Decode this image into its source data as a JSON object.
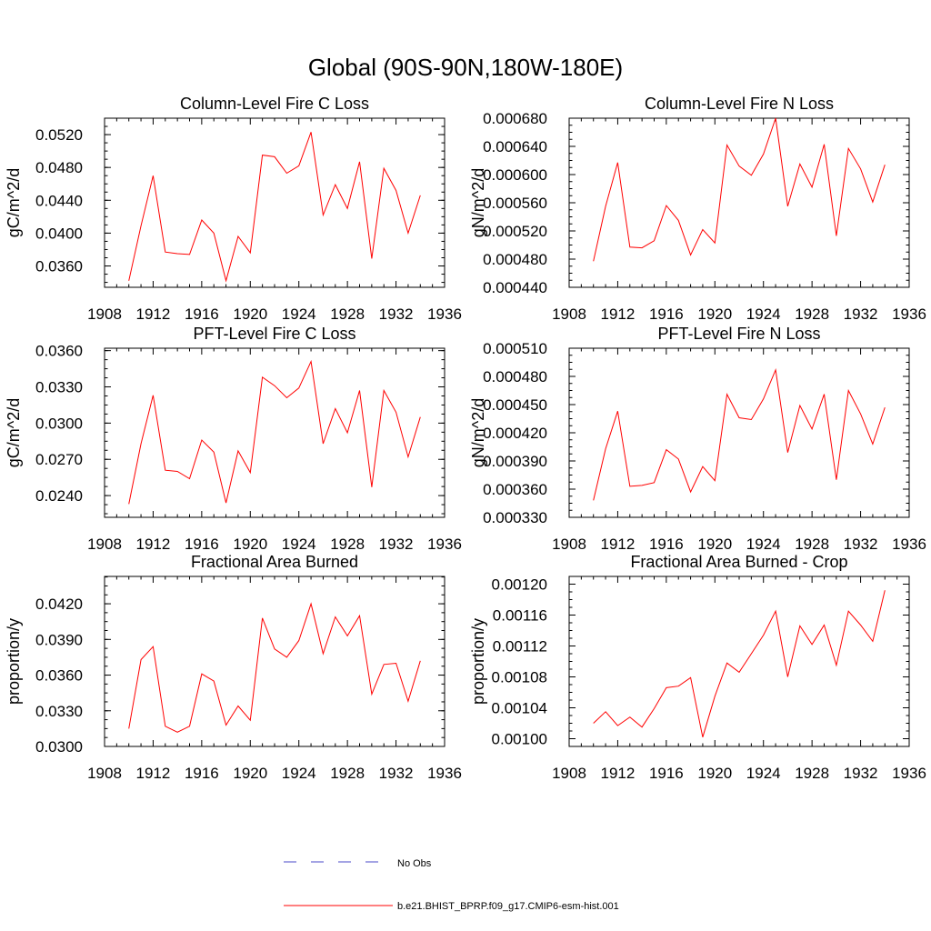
{
  "figure_title": "Global (90S-90N,180W-180E)",
  "legend": [
    {
      "label": "No Obs",
      "color": "#4a4ac8",
      "style": "dashed"
    },
    {
      "label": "b.e21.BHIST_BPRP.f09_g17.CMIP6-esm-hist.001",
      "color": "#ff0000",
      "style": "solid"
    }
  ],
  "chart_data": [
    {
      "type": "line",
      "title": "Column-Level Fire C Loss",
      "xlabel": "",
      "ylabel": "gC/m^2/d",
      "xlim": [
        1908,
        1936
      ],
      "ylim": [
        0.0334,
        0.054
      ],
      "xticks": [
        1908,
        1912,
        1916,
        1920,
        1924,
        1928,
        1932,
        1936
      ],
      "xtick_labels": [
        "1908",
        "1912",
        "1916",
        "1920",
        "1924",
        "1928",
        "1932",
        "1936"
      ],
      "yticks": [
        0.036,
        0.04,
        0.044,
        0.048,
        0.052
      ],
      "ytick_labels": [
        "0.0360",
        "0.0400",
        "0.0440",
        "0.0480",
        "0.0520"
      ],
      "grid": false,
      "series": [
        {
          "color": "#ff0000",
          "x": [
            1910,
            1911,
            1912,
            1913,
            1914,
            1915,
            1916,
            1917,
            1918,
            1919,
            1920,
            1921,
            1922,
            1923,
            1924,
            1925,
            1926,
            1927,
            1928,
            1929,
            1930,
            1931,
            1932,
            1933,
            1934
          ],
          "values": [
            0.0342,
            0.0409,
            0.047,
            0.0377,
            0.0375,
            0.0374,
            0.0416,
            0.04,
            0.0342,
            0.0396,
            0.0376,
            0.0495,
            0.0493,
            0.0473,
            0.0482,
            0.0523,
            0.0422,
            0.0459,
            0.043,
            0.0487,
            0.0369,
            0.0479,
            0.0452,
            0.04,
            0.0446
          ]
        }
      ]
    },
    {
      "type": "line",
      "title": "Column-Level Fire N Loss",
      "xlabel": "",
      "ylabel": "gN/m^2/d",
      "xlim": [
        1908,
        1936
      ],
      "ylim": [
        0.00044,
        0.00068
      ],
      "xticks": [
        1908,
        1912,
        1916,
        1920,
        1924,
        1928,
        1932,
        1936
      ],
      "xtick_labels": [
        "1908",
        "1912",
        "1916",
        "1920",
        "1924",
        "1928",
        "1932",
        "1936"
      ],
      "yticks": [
        0.00044,
        0.00048,
        0.00052,
        0.00056,
        0.0006,
        0.00064,
        0.00068
      ],
      "ytick_labels": [
        "0.000440",
        "0.000480",
        "0.000520",
        "0.000560",
        "0.000600",
        "0.000640",
        "0.000680"
      ],
      "grid": false,
      "series": [
        {
          "color": "#ff0000",
          "x": [
            1910,
            1911,
            1912,
            1913,
            1914,
            1915,
            1916,
            1917,
            1918,
            1919,
            1920,
            1921,
            1922,
            1923,
            1924,
            1925,
            1926,
            1927,
            1928,
            1929,
            1930,
            1931,
            1932,
            1933,
            1934
          ],
          "values": [
            0.000477,
            0.000555,
            0.000617,
            0.000497,
            0.000496,
            0.000506,
            0.000556,
            0.000535,
            0.000486,
            0.000522,
            0.000503,
            0.000642,
            0.000612,
            0.000599,
            0.000629,
            0.00068,
            0.000555,
            0.000615,
            0.000582,
            0.000643,
            0.000513,
            0.000637,
            0.000608,
            0.000561,
            0.000614
          ]
        }
      ]
    },
    {
      "type": "line",
      "title": "PFT-Level Fire C Loss",
      "xlabel": "",
      "ylabel": "gC/m^2/d",
      "xlim": [
        1908,
        1936
      ],
      "ylim": [
        0.0222,
        0.0362
      ],
      "xticks": [
        1908,
        1912,
        1916,
        1920,
        1924,
        1928,
        1932,
        1936
      ],
      "xtick_labels": [
        "1908",
        "1912",
        "1916",
        "1920",
        "1924",
        "1928",
        "1932",
        "1936"
      ],
      "yticks": [
        0.024,
        0.027,
        0.03,
        0.033,
        0.036
      ],
      "ytick_labels": [
        "0.0240",
        "0.0270",
        "0.0300",
        "0.0330",
        "0.0360"
      ],
      "grid": false,
      "series": [
        {
          "color": "#ff0000",
          "x": [
            1910,
            1911,
            1912,
            1913,
            1914,
            1915,
            1916,
            1917,
            1918,
            1919,
            1920,
            1921,
            1922,
            1923,
            1924,
            1925,
            1926,
            1927,
            1928,
            1929,
            1930,
            1931,
            1932,
            1933,
            1934
          ],
          "values": [
            0.0233,
            0.0283,
            0.0323,
            0.0261,
            0.026,
            0.0254,
            0.0286,
            0.0276,
            0.0234,
            0.0277,
            0.0259,
            0.0338,
            0.0331,
            0.0321,
            0.0329,
            0.0351,
            0.0283,
            0.0312,
            0.0292,
            0.0327,
            0.0247,
            0.0327,
            0.0309,
            0.0272,
            0.0305
          ]
        }
      ]
    },
    {
      "type": "line",
      "title": "PFT-Level Fire N Loss",
      "xlabel": "",
      "ylabel": "gN/m^2/d",
      "xlim": [
        1908,
        1936
      ],
      "ylim": [
        0.00033,
        0.00051
      ],
      "xticks": [
        1908,
        1912,
        1916,
        1920,
        1924,
        1928,
        1932,
        1936
      ],
      "xtick_labels": [
        "1908",
        "1912",
        "1916",
        "1920",
        "1924",
        "1928",
        "1932",
        "1936"
      ],
      "yticks": [
        0.00033,
        0.00036,
        0.00039,
        0.00042,
        0.00045,
        0.00048,
        0.00051
      ],
      "ytick_labels": [
        "0.000330",
        "0.000360",
        "0.000390",
        "0.000420",
        "0.000450",
        "0.000480",
        "0.000510"
      ],
      "grid": false,
      "series": [
        {
          "color": "#ff0000",
          "x": [
            1910,
            1911,
            1912,
            1913,
            1914,
            1915,
            1916,
            1917,
            1918,
            1919,
            1920,
            1921,
            1922,
            1923,
            1924,
            1925,
            1926,
            1927,
            1928,
            1929,
            1930,
            1931,
            1932,
            1933,
            1934
          ],
          "values": [
            0.000348,
            0.000403,
            0.000443,
            0.000363,
            0.000364,
            0.000367,
            0.000402,
            0.000392,
            0.000357,
            0.000384,
            0.000369,
            0.000461,
            0.000436,
            0.000434,
            0.000456,
            0.000487,
            0.000399,
            0.000449,
            0.000424,
            0.000461,
            0.00037,
            0.000465,
            0.00044,
            0.000408,
            0.000447
          ]
        }
      ]
    },
    {
      "type": "line",
      "title": "Fractional Area Burned",
      "xlabel": "",
      "ylabel": "proportion/y",
      "xlim": [
        1908,
        1936
      ],
      "ylim": [
        0.03,
        0.0443
      ],
      "xticks": [
        1908,
        1912,
        1916,
        1920,
        1924,
        1928,
        1932,
        1936
      ],
      "xtick_labels": [
        "1908",
        "1912",
        "1916",
        "1920",
        "1924",
        "1928",
        "1932",
        "1936"
      ],
      "yticks": [
        0.03,
        0.033,
        0.036,
        0.039,
        0.042
      ],
      "ytick_labels": [
        "0.0300",
        "0.0330",
        "0.0360",
        "0.0390",
        "0.0420"
      ],
      "grid": false,
      "series": [
        {
          "color": "#ff0000",
          "x": [
            1910,
            1911,
            1912,
            1913,
            1914,
            1915,
            1916,
            1917,
            1918,
            1919,
            1920,
            1921,
            1922,
            1923,
            1924,
            1925,
            1926,
            1927,
            1928,
            1929,
            1930,
            1931,
            1932,
            1933,
            1934
          ],
          "values": [
            0.0315,
            0.0373,
            0.0384,
            0.0317,
            0.0312,
            0.0317,
            0.0361,
            0.0355,
            0.0318,
            0.0334,
            0.0322,
            0.0408,
            0.0382,
            0.0375,
            0.0389,
            0.042,
            0.0378,
            0.0409,
            0.0393,
            0.041,
            0.0344,
            0.0369,
            0.037,
            0.0338,
            0.0372
          ]
        }
      ]
    },
    {
      "type": "line",
      "title": "Fractional Area Burned - Crop",
      "xlabel": "",
      "ylabel": "proportion/y",
      "xlim": [
        1908,
        1936
      ],
      "ylim": [
        0.00099,
        0.00121
      ],
      "xticks": [
        1908,
        1912,
        1916,
        1920,
        1924,
        1928,
        1932,
        1936
      ],
      "xtick_labels": [
        "1908",
        "1912",
        "1916",
        "1920",
        "1924",
        "1928",
        "1932",
        "1936"
      ],
      "yticks": [
        0.001,
        0.00104,
        0.00108,
        0.00112,
        0.00116,
        0.0012
      ],
      "ytick_labels": [
        "0.00100",
        "0.00104",
        "0.00108",
        "0.00112",
        "0.00116",
        "0.00120"
      ],
      "grid": false,
      "series": [
        {
          "color": "#ff0000",
          "x": [
            1910,
            1911,
            1912,
            1913,
            1914,
            1915,
            1916,
            1917,
            1918,
            1919,
            1920,
            1921,
            1922,
            1923,
            1924,
            1925,
            1926,
            1927,
            1928,
            1929,
            1930,
            1931,
            1932,
            1933,
            1934
          ],
          "values": [
            0.00102,
            0.001035,
            0.001017,
            0.001028,
            0.001015,
            0.001039,
            0.001066,
            0.001068,
            0.001079,
            0.001002,
            0.001055,
            0.001098,
            0.001086,
            0.00111,
            0.001134,
            0.001165,
            0.00108,
            0.001146,
            0.001122,
            0.001147,
            0.001095,
            0.001165,
            0.001147,
            0.001126,
            0.001192
          ]
        }
      ]
    }
  ]
}
